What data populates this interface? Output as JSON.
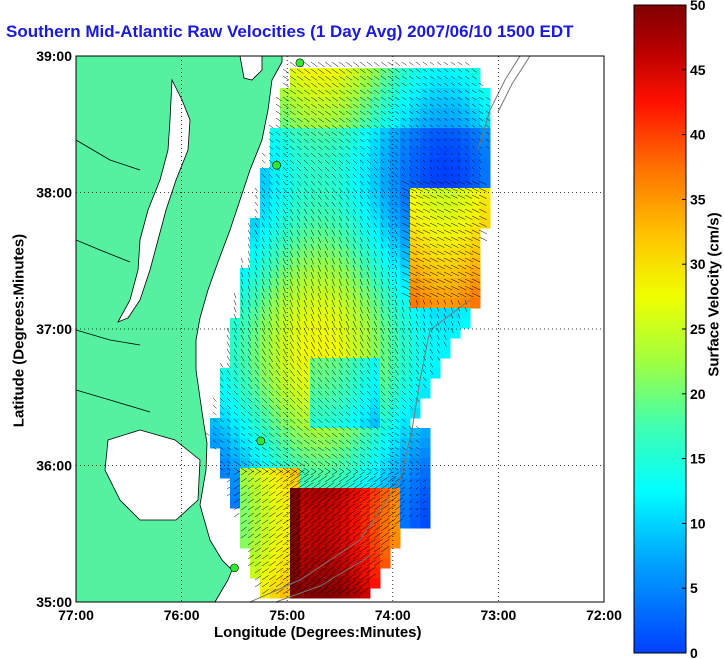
{
  "title": "Southern Mid-Atlantic Raw Velocities (1 Day Avg) 2007/06/10 1500 EDT",
  "xlabel": "Longitude (Degrees:Minutes)",
  "ylabel": "Latitude (Degrees:Minutes)",
  "colorbar_label": "Surface Velocity (cm/s)",
  "x_ticks": [
    "77:00",
    "76:00",
    "75:00",
    "74:00",
    "73:00",
    "72:00"
  ],
  "y_ticks": [
    "39:00",
    "38:00",
    "37:00",
    "36:00",
    "35:00"
  ],
  "colorbar_ticks": [
    "50",
    "45",
    "40",
    "35",
    "30",
    "25",
    "20",
    "15",
    "10",
    "5",
    "0"
  ],
  "colors": {
    "land": "#55f0a0",
    "title": "#1a1ad8"
  },
  "chart_data": {
    "type": "heatmap",
    "title": "Southern Mid-Atlantic Raw Velocities (1 Day Avg) 2007/06/10 1500 EDT",
    "xlabel": "Longitude (Degrees:Minutes)",
    "ylabel": "Latitude (Degrees:Minutes)",
    "xlim": [
      -77,
      -72
    ],
    "ylim": [
      35,
      39
    ],
    "colorbar_range": [
      0,
      50
    ],
    "colorbar_label": "Surface Velocity (cm/s)",
    "grid": true,
    "station_markers": [
      {
        "lon": -74.88,
        "lat": 38.95
      },
      {
        "lon": -75.1,
        "lat": 38.2
      },
      {
        "lon": -75.25,
        "lat": 36.18
      },
      {
        "lon": -75.5,
        "lat": 35.25
      }
    ]
  }
}
